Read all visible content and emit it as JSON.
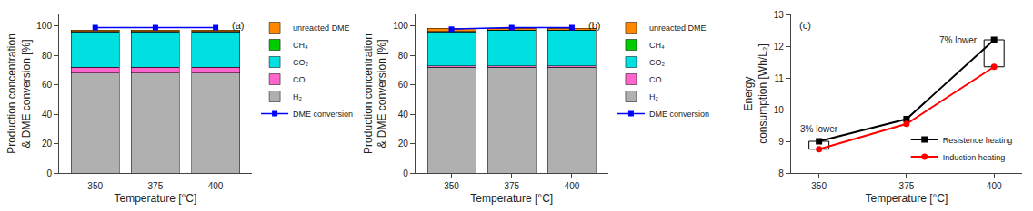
{
  "chart_data": [
    {
      "type": "bar",
      "stacked": true,
      "grid": false,
      "legend": "right",
      "xlabel": "Temperature [°C]",
      "ylabel": "Production concentration\n& DME conversion [%]",
      "x": [
        350,
        375,
        400
      ],
      "xlim": [
        335,
        415
      ],
      "xticks": [
        350,
        375,
        400
      ],
      "ylim": [
        0,
        108
      ],
      "yticks": [
        0,
        20,
        40,
        60,
        80,
        100
      ],
      "annotations": [
        {
          "text": "(a)"
        }
      ],
      "series": [
        {
          "name": "DME conversion",
          "type": "line",
          "marker": "square",
          "color": "#0000ff",
          "values": [
            99,
            99,
            99
          ]
        },
        {
          "name": "H₂",
          "color": "#b0b0b0",
          "values": [
            68,
            68,
            68
          ]
        },
        {
          "name": "CO",
          "color": "#ff66cc",
          "values": [
            4,
            4,
            4
          ]
        },
        {
          "name": "CO₂",
          "color": "#00e0e0",
          "values": [
            24,
            24,
            24
          ]
        },
        {
          "name": "CH₄",
          "color": "#00cc00",
          "values": [
            0.5,
            0.5,
            0.5
          ]
        },
        {
          "name": "unreacted DME",
          "color": "#ff8800",
          "values": [
            1.0,
            1.0,
            1.0
          ]
        }
      ]
    },
    {
      "type": "bar",
      "stacked": true,
      "grid": false,
      "legend": "right",
      "xlabel": "Temperature [°C]",
      "ylabel": "Production concentration\n& DME conversion [%]",
      "x": [
        350,
        375,
        400
      ],
      "xlim": [
        335,
        415
      ],
      "xticks": [
        350,
        375,
        400
      ],
      "ylim": [
        0,
        108
      ],
      "yticks": [
        0,
        20,
        40,
        60,
        80,
        100
      ],
      "annotations": [
        {
          "text": "(b)"
        }
      ],
      "series": [
        {
          "name": "DME conversion",
          "type": "line",
          "marker": "square",
          "color": "#0000ff",
          "values": [
            98,
            99,
            99
          ]
        },
        {
          "name": "H₂",
          "color": "#b0b0b0",
          "values": [
            72,
            72,
            72
          ]
        },
        {
          "name": "CO",
          "color": "#ff66cc",
          "values": [
            1,
            1,
            1
          ]
        },
        {
          "name": "CO₂",
          "color": "#00e0e0",
          "values": [
            23,
            24,
            24
          ]
        },
        {
          "name": "CH₄",
          "color": "#00cc00",
          "values": [
            0.5,
            0.5,
            0.5
          ]
        },
        {
          "name": "unreacted DME",
          "color": "#ff8800",
          "values": [
            2.0,
            1.0,
            1.0
          ]
        }
      ]
    },
    {
      "type": "line",
      "grid": false,
      "legend": "lower right",
      "xlabel": "Temperature [°C]",
      "ylabel": "Energy\nconsumption [Wh/L₂]",
      "x": [
        350,
        375,
        400
      ],
      "xlim": [
        342,
        408
      ],
      "xticks": [
        350,
        375,
        400
      ],
      "ylim": [
        8,
        13
      ],
      "yticks": [
        8,
        9,
        10,
        11,
        12,
        13
      ],
      "annotations": [
        {
          "text": "(c)"
        },
        {
          "text": "3% lower",
          "x": 350
        },
        {
          "text": "7% lower",
          "x": 400
        }
      ],
      "series": [
        {
          "name": "Resistence heating",
          "marker": "square",
          "color": "#000000",
          "values": [
            9.0,
            9.7,
            12.2
          ]
        },
        {
          "name": "Induction heating",
          "marker": "circle",
          "color": "#ff0000",
          "values": [
            8.75,
            9.55,
            11.35
          ]
        }
      ]
    }
  ]
}
